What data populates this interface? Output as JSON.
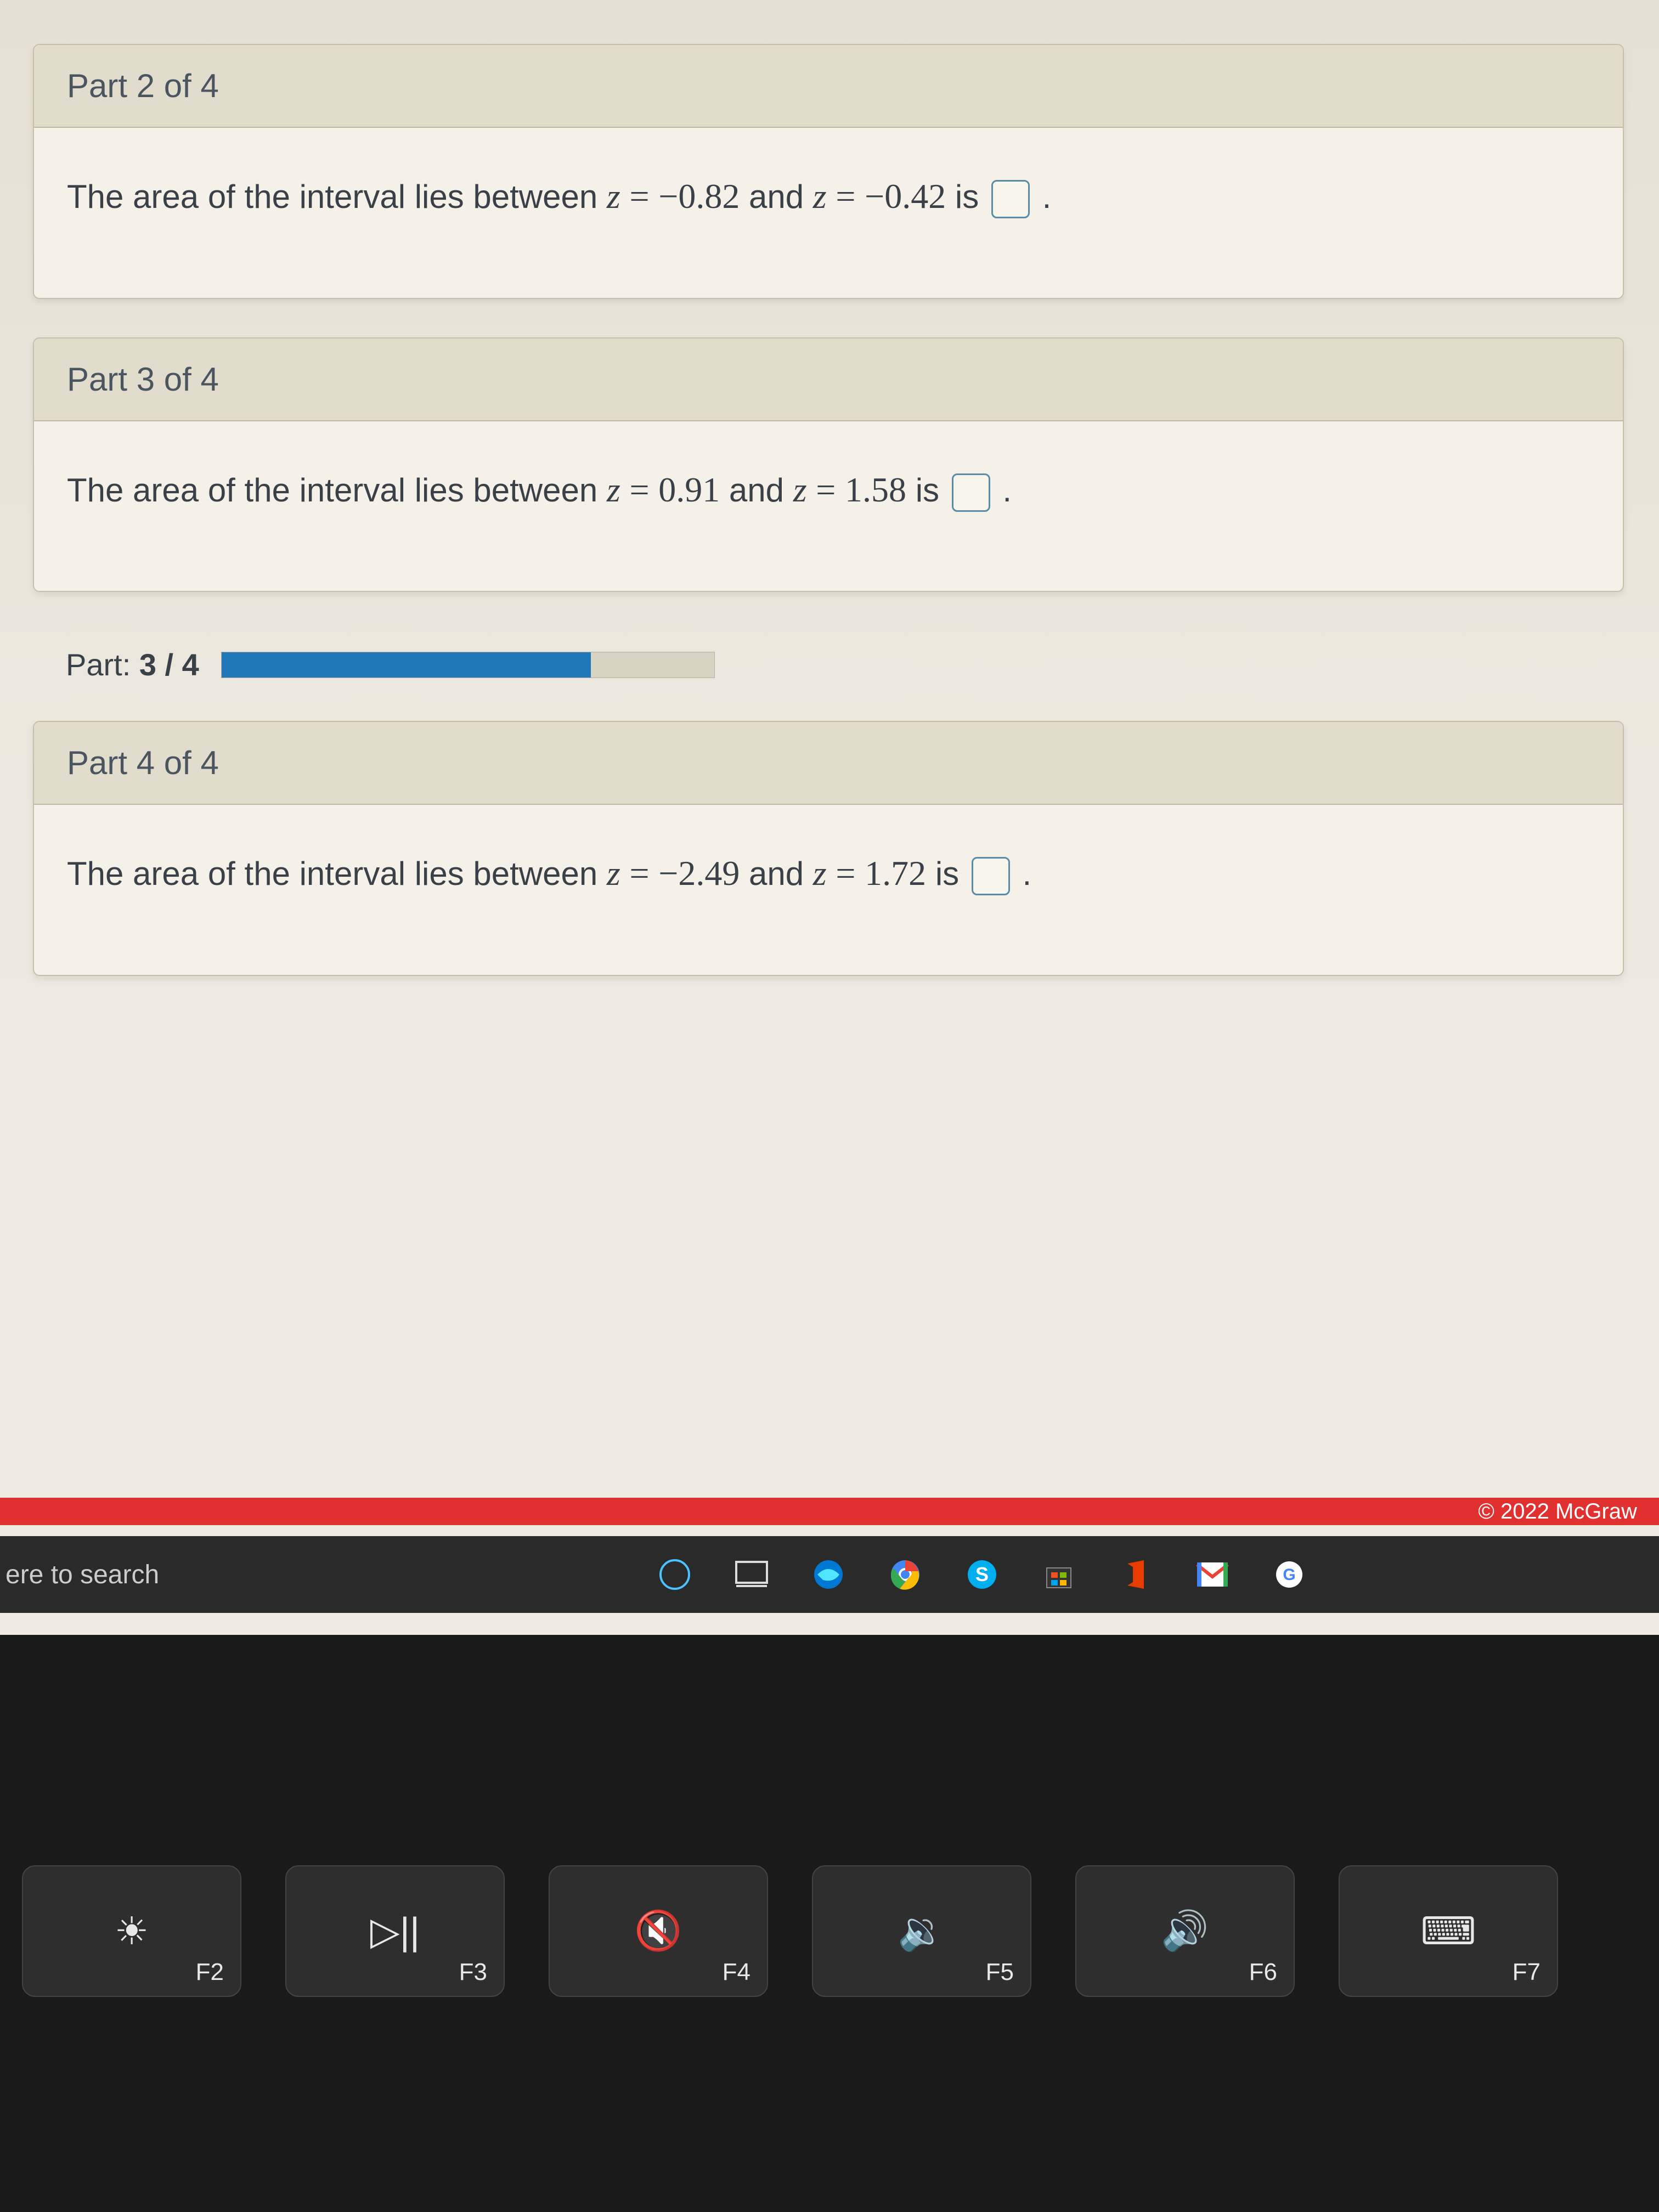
{
  "parts": {
    "part2": {
      "header": "Part 2 of 4",
      "text_prefix": "The area of the interval lies between ",
      "z1_label": "z",
      "eq": "=",
      "z1_value": "−0.82",
      "mid": " and ",
      "z2_label": "z",
      "z2_value": "−0.42",
      "suffix": " is ",
      "period": "."
    },
    "part3": {
      "header": "Part 3 of 4",
      "text_prefix": "The area of the interval lies between ",
      "z1_label": "z",
      "eq": "=",
      "z1_value": "0.91",
      "mid": " and ",
      "z2_label": "z",
      "z2_value": "1.58",
      "suffix": " is ",
      "period": "."
    },
    "progress": {
      "label_prefix": "Part: ",
      "current": "3",
      "sep": " / ",
      "total": "4",
      "percent": 75,
      "fill_color": "#1f78b8",
      "track_color": "#d8d2c2"
    },
    "part4": {
      "header": "Part 4 of 4",
      "text_prefix": "The area of the interval lies between ",
      "z1_label": "z",
      "eq": "=",
      "z1_value": "−2.49",
      "mid": " and ",
      "z2_label": "z",
      "z2_value": "1.72",
      "suffix": " is ",
      "period": "."
    }
  },
  "copyright": "© 2022 McGraw",
  "taskbar": {
    "search_placeholder": "ere to search",
    "icons": {
      "cortana": "cortana-circle",
      "taskview": "task-view",
      "edge": "edge",
      "chrome": "chrome",
      "skype": "skype",
      "store": "microsoft-store",
      "office": "office",
      "gmail": "gmail",
      "gdrive": "google"
    }
  },
  "keyboard": {
    "f2": {
      "icon": "☀",
      "label": "F2"
    },
    "f3": {
      "icon": "▷||",
      "label": "F3"
    },
    "f4": {
      "icon": "🔇",
      "label": "F4"
    },
    "f5": {
      "icon": "🔉",
      "label": "F5"
    },
    "f6": {
      "icon": "🔊",
      "label": "F6"
    },
    "f7": {
      "icon": "⌨",
      "label": "F7"
    }
  },
  "colors": {
    "page_bg": "#e8e4dc",
    "card_bg": "#f5f1e8",
    "header_bg": "#e2dccc",
    "border": "#c8bfa8",
    "text": "#3a4048",
    "answer_box_border": "#5a8ca8",
    "red_bar": "#e03030",
    "taskbar_bg": "#2a2a2a"
  }
}
